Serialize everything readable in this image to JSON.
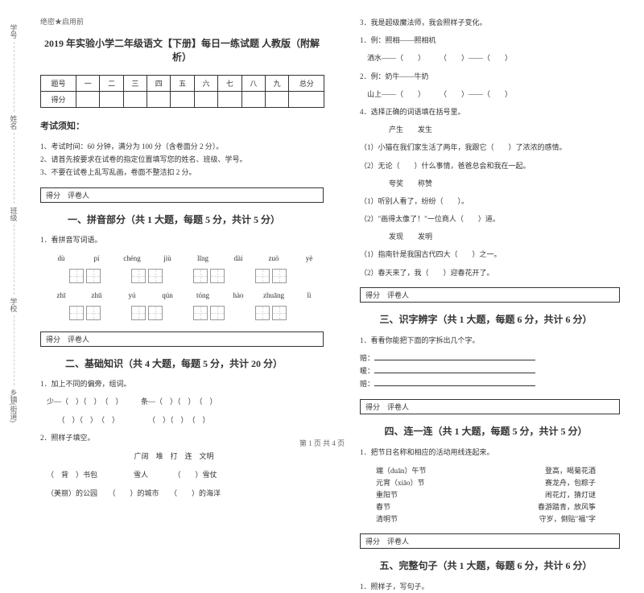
{
  "confidential": "绝密★启用前",
  "title": "2019 年实验小学二年级语文【下册】每日一练试题 人教版（附解析）",
  "score_header": [
    "题号",
    "一",
    "二",
    "三",
    "四",
    "五",
    "六",
    "七",
    "八",
    "九",
    "总分"
  ],
  "score_row": "得分",
  "notice_title": "考试须知：",
  "notices": [
    "1、考试时间：60 分钟，满分为 100 分（含卷面分 2 分）。",
    "2、请首先按要求在试卷的指定位置填写您的姓名、班级、学号。",
    "3、不要在试卷上乱写乱画，卷面不整洁扣 2 分。"
  ],
  "sec_box": "得分　评卷人",
  "sec1": {
    "title": "一、拼音部分（共 1 大题，每题 5 分，共计 5 分）",
    "q": "1．看拼音写词语。",
    "row1": [
      "dù",
      "pí",
      "chéng",
      "jiù",
      "lǐng",
      "dài",
      "zuò",
      "yè"
    ],
    "row2": [
      "zhī",
      "zhū",
      "yú",
      "qún",
      "tóng",
      "hào",
      "zhuāng",
      "lì"
    ]
  },
  "sec2": {
    "title": "二、基础知识（共 4 大题，每题 5 分，共计 20 分）",
    "q1": "1．加上不同的偏旁，组词。",
    "fill1a": "少—（　）（　）　（　）　　　条—（　）（　）　（　）",
    "fill1b": "　　（　）（　）　（　）　　　　　（　）（　）　（　）",
    "q2": "2．照样子填空。",
    "fill2h": "广阔　堆　打　连　文明",
    "fill2a": "（　背　）书包　　　　　雪人　　　　（　　）雪仗",
    "fill2b": "（美丽）的公园　　（　　）的城市　　（　　）的海洋"
  },
  "right": {
    "q3": "3．我是超级魔法师，我会照样子变化。",
    "q3a": "1．例：照相——照相机",
    "q3b": "　洒水——（　　）　　　（　　）——（　　）",
    "q3c": "2．例：奶牛——牛奶",
    "q3d": "　山上——（　　）　　　（　　）——（　　）",
    "q4": "4．选择正确的词语填在括号里。",
    "q4a": "　　　　产生　　发生",
    "q4b": "（1）小猫在我们家生活了两年，我跟它（　　）了浓浓的感情。",
    "q4c": "（2）无论（　　）什么事情，爸爸总会和我在一起。",
    "q4d": "　　　　夸奖　　称赞",
    "q4e": "（1）听别人看了，纷纷（　　）。",
    "q4f": "（2）\"画得太像了！\"一位商人（　　）道。",
    "q4g": "　　　　发现　　发明",
    "q4h": "（1）指南针是我国古代四大（　　）之一。",
    "q4i": "（2）春天来了，我（　　）迎春花开了。"
  },
  "sec3": {
    "title": "三、识字辨字（共 1 大题，每题 6 分，共计 6 分）",
    "q": "1．看看你能把下面的字拆出几个字。",
    "lines": [
      "赔：",
      "暖：",
      "赔："
    ]
  },
  "sec4": {
    "title": "四、连一连（共 1 大题，每题 5 分，共计 5 分）",
    "q": "1．把节日名称和相应的活动用线连起来。",
    "rows": [
      [
        "端（duān）午节",
        "登高，喝菊花酒"
      ],
      [
        "元宵（xiāo）节",
        "赛龙舟，包粽子"
      ],
      [
        "重阳节",
        "闹花灯，猜灯谜"
      ],
      [
        "春节",
        "春游踏青，放风筝"
      ],
      [
        "清明节",
        "守岁，倒贴\"福\"字"
      ]
    ]
  },
  "sec5": {
    "title": "五、完整句子（共 1 大题，每题 6 分，共计 6 分）",
    "q": "1．照样子，写句子。"
  },
  "footer": "第 1 页 共 4 页"
}
